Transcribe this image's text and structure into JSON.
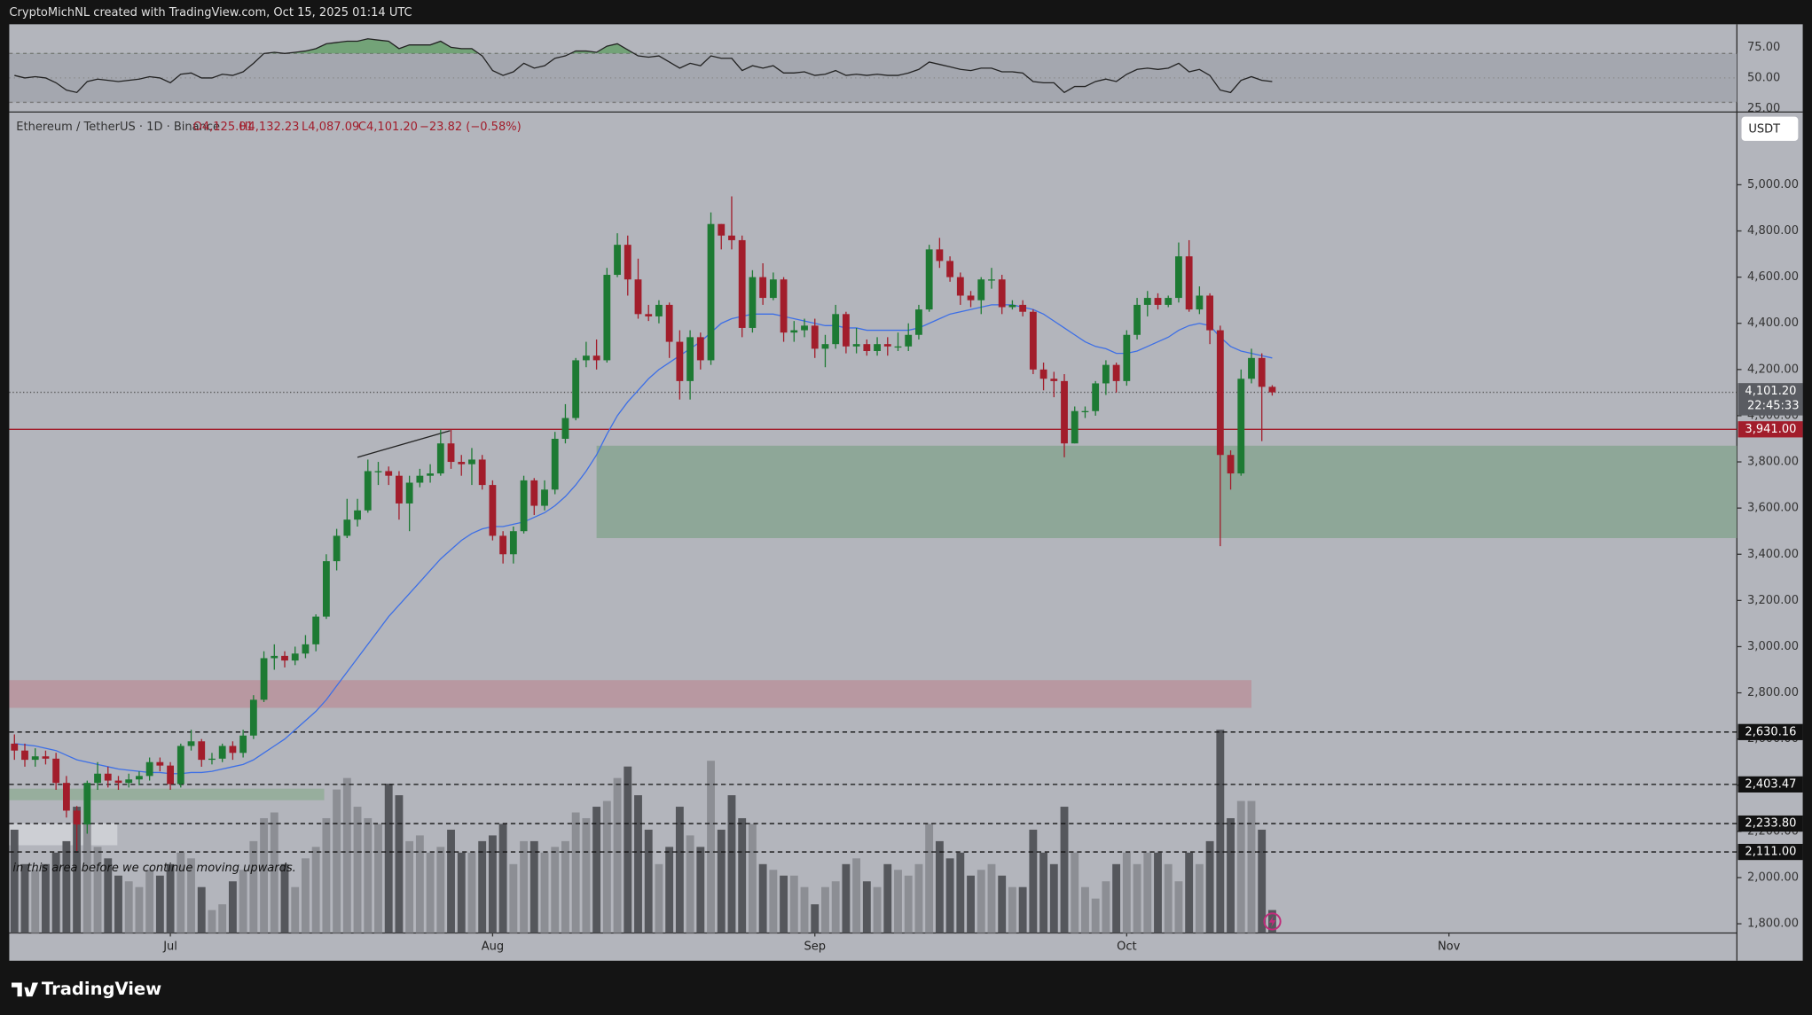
{
  "header": "CryptoMichNL created with TradingView.com, Oct 15, 2025 01:14 UTC",
  "footer_logo": "TradingView",
  "chart_data": {
    "type": "candlestick",
    "symbol": "Ethereum / TetherUS · 1D · Binance",
    "ohlc_labels": [
      "O4,125.01",
      "H4,132.23",
      "L4,087.09",
      "C4,101.20",
      "−23.82 (−0.58%)"
    ],
    "currency": "USDT",
    "open": [
      2580,
      2550,
      2510,
      2525,
      2515,
      2410,
      2290,
      2230,
      2410,
      2450,
      2420,
      2410,
      2425,
      2440,
      2500,
      2485,
      2405,
      2570,
      2590,
      2510,
      2515,
      2570,
      2540,
      2615,
      2770,
      2950,
      2960,
      2940,
      2970,
      3010,
      3130,
      3370,
      3480,
      3550,
      3590,
      3760,
      3760,
      3740,
      3620,
      3710,
      3740,
      3750,
      3880,
      3800,
      3790,
      3810,
      3700,
      3480,
      3400,
      3500,
      3720,
      3610,
      3680,
      3900,
      3990,
      4240,
      4260,
      4240,
      4610,
      4740,
      4590,
      4440,
      4430,
      4480,
      4320,
      4150,
      4340,
      4240,
      4830,
      4780,
      4760,
      4380,
      4600,
      4510,
      4590,
      4360,
      4370,
      4390,
      4290,
      4310,
      4440,
      4300,
      4310,
      4280,
      4310,
      4300,
      4300,
      4350,
      4460,
      4720,
      4670,
      4600,
      4520,
      4500,
      4590,
      4590,
      4470,
      4480,
      4450,
      4200,
      4160,
      4150,
      3880,
      4020,
      4020,
      4140,
      4220,
      4150,
      4350,
      4480,
      4510,
      4480,
      4510,
      4690,
      4460,
      4520,
      4370,
      3830,
      3750,
      4160,
      4250,
      4125.01
    ],
    "high": [
      2620,
      2580,
      2560,
      2550,
      2540,
      2440,
      2310,
      2420,
      2500,
      2480,
      2440,
      2450,
      2460,
      2520,
      2520,
      2500,
      2580,
      2640,
      2600,
      2540,
      2580,
      2590,
      2640,
      2790,
      2980,
      3010,
      2980,
      3000,
      3050,
      3140,
      3400,
      3510,
      3640,
      3640,
      3810,
      3800,
      3780,
      3760,
      3740,
      3770,
      3790,
      3940,
      3940,
      3830,
      3860,
      3830,
      3720,
      3500,
      3520,
      3740,
      3730,
      3720,
      3930,
      4050,
      4250,
      4320,
      4330,
      4640,
      4790,
      4780,
      4680,
      4480,
      4500,
      4490,
      4370,
      4370,
      4360,
      4880,
      4830,
      4950,
      4780,
      4630,
      4660,
      4620,
      4600,
      4410,
      4420,
      4420,
      4350,
      4480,
      4450,
      4380,
      4330,
      4340,
      4340,
      4360,
      4400,
      4480,
      4740,
      4770,
      4690,
      4620,
      4540,
      4600,
      4640,
      4610,
      4500,
      4500,
      4460,
      4230,
      4190,
      4180,
      4040,
      4040,
      4150,
      4240,
      4230,
      4370,
      4510,
      4540,
      4530,
      4520,
      4750,
      4760,
      4560,
      4530,
      4390,
      3850,
      4200,
      4290,
      4270,
      4132.23
    ],
    "low": [
      2510,
      2480,
      2480,
      2490,
      2380,
      2260,
      2115,
      2190,
      2380,
      2390,
      2380,
      2390,
      2400,
      2420,
      2460,
      2380,
      2390,
      2550,
      2480,
      2490,
      2500,
      2510,
      2520,
      2600,
      2760,
      2900,
      2910,
      2920,
      2950,
      2980,
      3120,
      3330,
      3470,
      3520,
      3580,
      3700,
      3700,
      3550,
      3500,
      3690,
      3710,
      3740,
      3770,
      3740,
      3700,
      3680,
      3460,
      3360,
      3360,
      3490,
      3570,
      3590,
      3660,
      3880,
      3980,
      4210,
      4200,
      4230,
      4600,
      4520,
      4420,
      4410,
      4400,
      4250,
      4070,
      4070,
      4200,
      4220,
      4720,
      4720,
      4340,
      4360,
      4480,
      4500,
      4320,
      4320,
      4340,
      4250,
      4210,
      4290,
      4270,
      4270,
      4260,
      4260,
      4260,
      4280,
      4280,
      4330,
      4450,
      4640,
      4580,
      4480,
      4470,
      4440,
      4550,
      4440,
      4460,
      4430,
      4180,
      4110,
      4080,
      3820,
      3880,
      3990,
      4000,
      4090,
      4100,
      4130,
      4330,
      4430,
      4460,
      4470,
      4490,
      4450,
      4440,
      4310,
      3435,
      3680,
      3740,
      4140,
      3890,
      4087.09
    ],
    "close": [
      2550,
      2510,
      2525,
      2515,
      2410,
      2290,
      2230,
      2410,
      2450,
      2420,
      2410,
      2425,
      2440,
      2500,
      2485,
      2405,
      2570,
      2590,
      2510,
      2515,
      2570,
      2540,
      2615,
      2770,
      2950,
      2960,
      2940,
      2970,
      3010,
      3130,
      3370,
      3480,
      3550,
      3590,
      3760,
      3760,
      3740,
      3620,
      3710,
      3740,
      3750,
      3880,
      3800,
      3790,
      3810,
      3700,
      3480,
      3400,
      3500,
      3720,
      3610,
      3680,
      3900,
      3990,
      4240,
      4260,
      4240,
      4610,
      4740,
      4590,
      4440,
      4430,
      4480,
      4320,
      4150,
      4340,
      4240,
      4830,
      4780,
      4760,
      4380,
      4600,
      4510,
      4590,
      4360,
      4370,
      4390,
      4290,
      4310,
      4440,
      4300,
      4310,
      4280,
      4310,
      4300,
      4300,
      4350,
      4460,
      4720,
      4670,
      4600,
      4520,
      4500,
      4590,
      4590,
      4470,
      4480,
      4450,
      4200,
      4160,
      4150,
      3880,
      4020,
      4020,
      4140,
      4220,
      4150,
      4350,
      4480,
      4510,
      4480,
      4510,
      4690,
      4460,
      4520,
      4370,
      3830,
      3750,
      4160,
      4250,
      4125,
      4101.2
    ],
    "colors": {
      "up": "#1d7a33",
      "down": "#a21d2b"
    },
    "ma": {
      "color": "#3d6fe6",
      "values": [
        2580,
        2575,
        2570,
        2560,
        2550,
        2530,
        2510,
        2500,
        2490,
        2480,
        2470,
        2465,
        2460,
        2455,
        2455,
        2450,
        2450,
        2455,
        2455,
        2460,
        2470,
        2480,
        2490,
        2510,
        2540,
        2570,
        2600,
        2640,
        2680,
        2720,
        2770,
        2830,
        2890,
        2950,
        3010,
        3070,
        3130,
        3180,
        3230,
        3280,
        3330,
        3380,
        3420,
        3460,
        3490,
        3510,
        3520,
        3520,
        3530,
        3540,
        3560,
        3580,
        3610,
        3650,
        3700,
        3760,
        3830,
        3920,
        4000,
        4060,
        4110,
        4160,
        4200,
        4230,
        4260,
        4290,
        4320,
        4360,
        4400,
        4420,
        4430,
        4440,
        4440,
        4440,
        4430,
        4420,
        4410,
        4400,
        4390,
        4390,
        4380,
        4380,
        4370,
        4370,
        4370,
        4370,
        4370,
        4380,
        4400,
        4420,
        4440,
        4450,
        4460,
        4470,
        4480,
        4480,
        4480,
        4470,
        4460,
        4440,
        4410,
        4380,
        4350,
        4320,
        4300,
        4290,
        4270,
        4270,
        4280,
        4300,
        4320,
        4340,
        4370,
        4390,
        4400,
        4390,
        4340,
        4300,
        4280,
        4270,
        4260,
        4250
      ]
    },
    "volume": {
      "up_color": "#8c8e94",
      "down_color": "#55575c",
      "values": [
        90,
        60,
        55,
        60,
        70,
        80,
        110,
        95,
        75,
        65,
        50,
        45,
        40,
        55,
        50,
        60,
        70,
        65,
        40,
        20,
        25,
        45,
        55,
        80,
        100,
        105,
        60,
        40,
        65,
        75,
        100,
        125,
        135,
        110,
        100,
        95,
        130,
        120,
        80,
        85,
        70,
        75,
        90,
        70,
        70,
        80,
        85,
        95,
        60,
        80,
        80,
        70,
        75,
        80,
        105,
        100,
        110,
        115,
        135,
        145,
        120,
        90,
        60,
        75,
        110,
        85,
        75,
        150,
        90,
        120,
        100,
        95,
        60,
        55,
        50,
        50,
        40,
        25,
        40,
        45,
        60,
        65,
        45,
        40,
        60,
        55,
        50,
        60,
        95,
        80,
        65,
        70,
        50,
        55,
        60,
        50,
        40,
        40,
        90,
        70,
        60,
        110,
        70,
        40,
        30,
        45,
        60,
        70,
        60,
        70,
        70,
        60,
        45,
        70,
        60,
        80,
        177,
        100,
        115,
        115,
        90,
        20
      ]
    },
    "xlim": [
      -0.5,
      165.7
    ],
    "xticks": [
      {
        "value": 15,
        "label": "Jul"
      },
      {
        "value": 46,
        "label": "Aug"
      },
      {
        "value": 77,
        "label": "Sep"
      },
      {
        "value": 107,
        "label": "Oct"
      },
      {
        "value": 138,
        "label": "Nov"
      }
    ],
    "ylim": [
      1760,
      5310
    ],
    "yticks": [
      {
        "value": 1800,
        "label": "1,800.00"
      },
      {
        "value": 2000,
        "label": "2,000.00"
      },
      {
        "value": 2200,
        "label": "2,200.00"
      },
      {
        "value": 2400,
        "label": "2,400.00"
      },
      {
        "value": 2600,
        "label": "2,600.00"
      },
      {
        "value": 2800,
        "label": "2,800.00"
      },
      {
        "value": 3000,
        "label": "3,000.00"
      },
      {
        "value": 3200,
        "label": "3,200.00"
      },
      {
        "value": 3400,
        "label": "3,400.00"
      },
      {
        "value": 3600,
        "label": "3,600.00"
      },
      {
        "value": 3800,
        "label": "3,800.00"
      },
      {
        "value": 4000,
        "label": "4,000.00"
      },
      {
        "value": 4200,
        "label": "4,200.00"
      },
      {
        "value": 4400,
        "label": "4,400.00"
      },
      {
        "value": 4600,
        "label": "4,600.00"
      },
      {
        "value": 4800,
        "label": "4,800.00"
      },
      {
        "value": 5000,
        "label": "5,000.00"
      }
    ],
    "price_label": {
      "value": 4101.2,
      "label": "4,101.20",
      "countdown": "22:45:33",
      "color": "#5a5c62"
    },
    "levels": [
      {
        "value": 3941,
        "label": "3,941.00",
        "color": "#a21d2b",
        "style": "solid"
      },
      {
        "value": 2630.16,
        "label": "2,630.16",
        "color": "#111111",
        "style": "dashed"
      },
      {
        "value": 2403.47,
        "label": "2,403.47",
        "color": "#111111",
        "style": "dashed"
      },
      {
        "value": 2233.8,
        "label": "2,233.80",
        "color": "#111111",
        "style": "dashed"
      },
      {
        "value": 2111,
        "label": "2,111.00",
        "color": "#111111",
        "style": "dashed"
      }
    ],
    "zones": [
      {
        "start": 56,
        "end": 165.7,
        "low": 3470,
        "high": 3870,
        "color": "#8aa593"
      },
      {
        "start": -0.5,
        "end": 119,
        "low": 2735,
        "high": 2855,
        "color": "#b8959d"
      },
      {
        "start": -0.5,
        "end": 29.8,
        "low": 2335,
        "high": 2385,
        "color": "#93ad99"
      },
      {
        "start": -0.5,
        "end": 9.9,
        "low": 2140,
        "high": 2235,
        "color": "#cfd1d6"
      }
    ],
    "trendline": {
      "x": [
        33,
        41.9
      ],
      "y": [
        3820,
        3935
      ],
      "color": "#222222"
    },
    "annotation": "in this area before we continue moving upwards.",
    "rsi": {
      "color": "#222222",
      "values": [
        52,
        50,
        51,
        50,
        46,
        40,
        38,
        47,
        49,
        48,
        47,
        48,
        49,
        51,
        50,
        46,
        53,
        54,
        50,
        50,
        53,
        52,
        55,
        62,
        70,
        71,
        70,
        71,
        72,
        74,
        78,
        79,
        80,
        80,
        82,
        81,
        80,
        74,
        77,
        77,
        77,
        80,
        75,
        74,
        74,
        68,
        56,
        52,
        55,
        62,
        58,
        60,
        66,
        68,
        72,
        72,
        71,
        76,
        78,
        73,
        68,
        67,
        68,
        63,
        58,
        62,
        60,
        68,
        66,
        66,
        56,
        60,
        58,
        60,
        54,
        54,
        55,
        52,
        53,
        56,
        52,
        53,
        52,
        53,
        52,
        52,
        54,
        57,
        63,
        61,
        59,
        57,
        56,
        58,
        58,
        55,
        55,
        54,
        47,
        46,
        46,
        38,
        43,
        43,
        47,
        49,
        47,
        53,
        57,
        58,
        57,
        58,
        62,
        55,
        57,
        52,
        40,
        38,
        48,
        51,
        48,
        47
      ],
      "ylim": [
        23,
        93
      ],
      "yticks": [
        {
          "value": 75,
          "label": "75.00"
        },
        {
          "value": 50,
          "label": "50.00"
        },
        {
          "value": 25,
          "label": "25.00"
        }
      ],
      "band": [
        30,
        70
      ],
      "fill_color": "#5e9e62"
    }
  }
}
